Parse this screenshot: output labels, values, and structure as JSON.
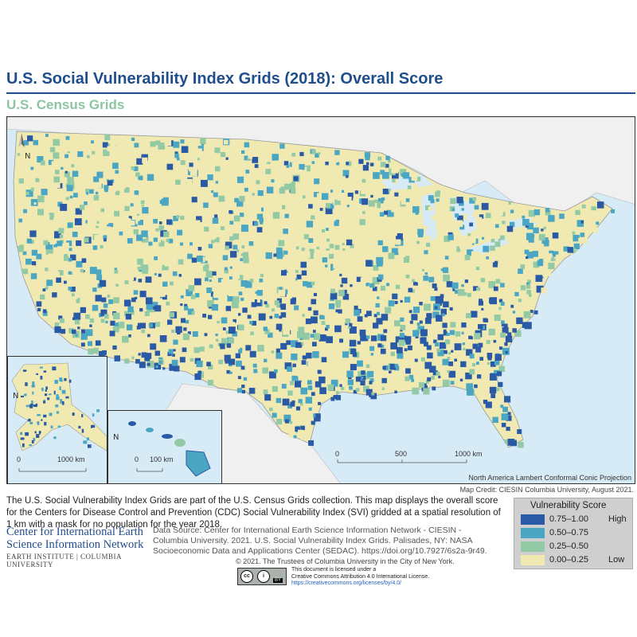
{
  "title": "U.S. Social Vulnerability Index Grids (2018): Overall Score",
  "subtitle": "U.S. Census Grids",
  "map": {
    "north_arrow": "N",
    "projection": "North America Lambert Conformal Conic Projection",
    "main_scale": {
      "ticks": [
        "0",
        "500",
        "1000 km"
      ]
    },
    "alaska_scale": {
      "ticks": [
        "0",
        "1000 km"
      ]
    },
    "hawaii_scale": {
      "ticks": [
        "0",
        "100 km"
      ]
    },
    "colors": {
      "water": "#d7ebf7",
      "land": "#f0f0f0",
      "high": "#2a5aa5",
      "midhigh": "#4aa6c2",
      "midlow": "#93c9a4",
      "low": "#f0eab2"
    }
  },
  "credit": "Map Credit: CIESIN Columbia University, August 2021.",
  "description": "The U.S. Social Vulnerability Index Grids are part of the U.S. Census Grids collection. This map displays the overall score for the Centers for Disease Control and Prevention (CDC) Social Vulnerability Index (SVI) gridded at a spatial resolution of 1 km with a mask for no population for the year 2018.",
  "legend": {
    "title": "Vulnerability Score",
    "items": [
      {
        "range": "0.75–1.00",
        "tag": "High",
        "color": "#2a5aa5"
      },
      {
        "range": "0.50–0.75",
        "tag": "",
        "color": "#4aa6c2"
      },
      {
        "range": "0.25–0.50",
        "tag": "",
        "color": "#93c9a4"
      },
      {
        "range": "0.00–0.25",
        "tag": "Low",
        "color": "#f0eab2"
      }
    ]
  },
  "org": {
    "line1": "Center for International Earth",
    "line2": "Science Information Network",
    "line3": "EARTH INSTITUTE | COLUMBIA UNIVERSITY"
  },
  "source": "Data Source: Center for International Earth Science Information Network - CIESIN - Columbia University. 2021. U.S. Social Vulnerability Index Grids. Palisades, NY: NASA Socioeconomic Data and Applications Center (SEDAC). https://doi.org/10.7927/6s2a-9r49.",
  "copyright": "© 2021. The Trustees of Columbia University in the City of New York.",
  "license": {
    "line1": "This document is licensed under a",
    "line2": "Creative Commons Attribution 4.0 International License.",
    "url": "https://creativecommons.org/licenses/by/4.0/"
  },
  "cc_badge": {
    "cc": "cc",
    "by_icon": "i",
    "by": "BY"
  }
}
